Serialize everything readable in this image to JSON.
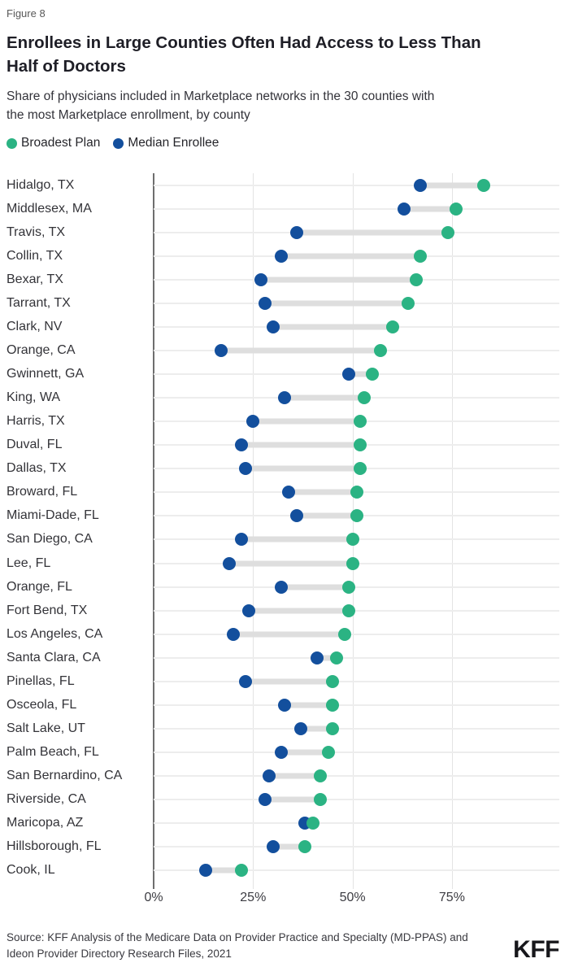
{
  "header": {
    "figure_label": "Figure 8",
    "title_line1": "Enrollees in Large Counties Often Had Access to Less Than",
    "title_line2": "Half of Doctors",
    "subtitle_line1": "Share of physicians included in Marketplace networks in the 30 counties with",
    "subtitle_line2": "the most Marketplace enrollment, by county"
  },
  "legend": {
    "items": [
      {
        "label": "Broadest Plan",
        "color": "#2bb383"
      },
      {
        "label": "Median Enrollee",
        "color": "#134f9d"
      }
    ]
  },
  "chart_data": {
    "type": "scatter",
    "subtype": "dumbbell",
    "title": "Enrollees in Large Counties Often Had Access to Less Than Half of Doctors",
    "subtitle": "Share of physicians included in Marketplace networks in the 30 counties with the most Marketplace enrollment, by county",
    "xlabel": "",
    "ylabel": "",
    "unit": "%",
    "xlim": [
      0,
      102
    ],
    "grid": true,
    "legend_position": "top",
    "x_ticks": [
      {
        "value": 0,
        "label": "0%"
      },
      {
        "value": 25,
        "label": "25%"
      },
      {
        "value": 50,
        "label": "50%"
      },
      {
        "value": 75,
        "label": "75%"
      }
    ],
    "categories": [
      "Hidalgo, TX",
      "Middlesex, MA",
      "Travis, TX",
      "Collin, TX",
      "Bexar, TX",
      "Tarrant, TX",
      "Clark, NV",
      "Orange, CA",
      "Gwinnett, GA",
      "King, WA",
      "Harris, TX",
      "Duval, FL",
      "Dallas, TX",
      "Broward, FL",
      "Miami-Dade, FL",
      "San Diego, CA",
      "Lee, FL",
      "Orange, FL",
      "Fort Bend, TX",
      "Los Angeles, CA",
      "Santa Clara, CA",
      "Pinellas, FL",
      "Osceola, FL",
      "Salt Lake, UT",
      "Palm Beach, FL",
      "San Bernardino, CA",
      "Riverside, CA",
      "Maricopa, AZ",
      "Hillsborough, FL",
      "Cook, IL"
    ],
    "series": [
      {
        "name": "Broadest Plan",
        "color": "#2bb383",
        "values": [
          83,
          76,
          74,
          67,
          66,
          64,
          60,
          57,
          55,
          53,
          52,
          52,
          52,
          51,
          51,
          50,
          50,
          49,
          49,
          48,
          46,
          45,
          45,
          45,
          44,
          42,
          42,
          40,
          38,
          22
        ]
      },
      {
        "name": "Median Enrollee",
        "color": "#134f9d",
        "values": [
          67,
          63,
          36,
          32,
          27,
          28,
          30,
          17,
          49,
          33,
          25,
          22,
          23,
          34,
          36,
          22,
          19,
          32,
          24,
          20,
          41,
          23,
          33,
          37,
          32,
          29,
          28,
          38,
          30,
          13
        ]
      }
    ],
    "connector_color": "#dedede"
  },
  "footer": {
    "source_line1": "Source: KFF Analysis of the Medicare Data on Provider Practice and Specialty (MD-PPAS) and",
    "source_line2": "Ideon Provider Directory Research Files, 2021",
    "logo": "KFF"
  }
}
